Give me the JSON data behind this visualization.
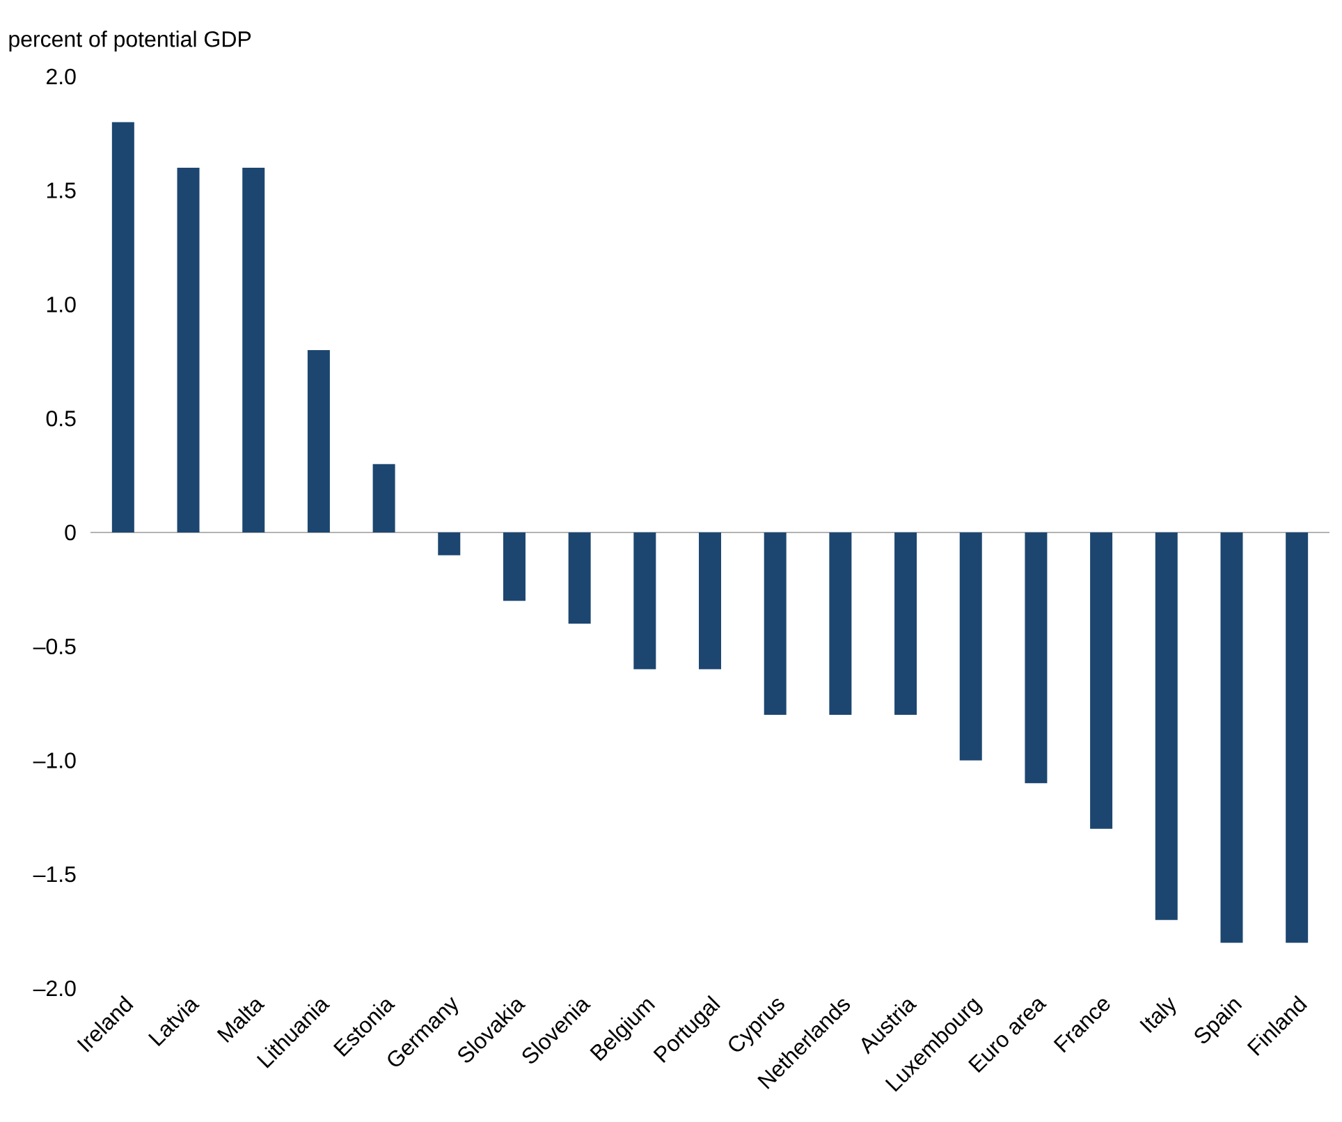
{
  "chart_data": {
    "type": "bar",
    "ylabel": "percent of potential GDP",
    "categories": [
      "Ireland",
      "Latvia",
      "Malta",
      "Lithuania",
      "Estonia",
      "Germany",
      "Slovakia",
      "Slovenia",
      "Belgium",
      "Portugal",
      "Cyprus",
      "Netherlands",
      "Austria",
      "Luxembourg",
      "Euro area",
      "France",
      "Italy",
      "Spain",
      "Finland"
    ],
    "values": [
      1.8,
      1.6,
      1.6,
      0.8,
      0.3,
      -0.1,
      -0.3,
      -0.4,
      -0.6,
      -0.6,
      -0.8,
      -0.8,
      -0.8,
      -1.0,
      -1.1,
      -1.3,
      -1.7,
      -1.8,
      -1.8
    ],
    "color": "#1c4670",
    "ylim": [
      -2,
      2
    ],
    "yticks": [
      {
        "value": -2,
        "label": "–2.0"
      },
      {
        "value": -1.5,
        "label": "–1.5"
      },
      {
        "value": -1,
        "label": "–1.0"
      },
      {
        "value": -0.5,
        "label": "–0.5"
      },
      0,
      {
        "value": 0.5,
        "label": "0.5"
      },
      {
        "value": 1,
        "label": "1.0"
      },
      {
        "value": 1.5,
        "label": "1.5"
      },
      {
        "value": 2,
        "label": "2.0"
      }
    ],
    "ref_lines": [
      {
        "axis": "y",
        "value": 0,
        "color": "#b3b3b3"
      }
    ]
  }
}
